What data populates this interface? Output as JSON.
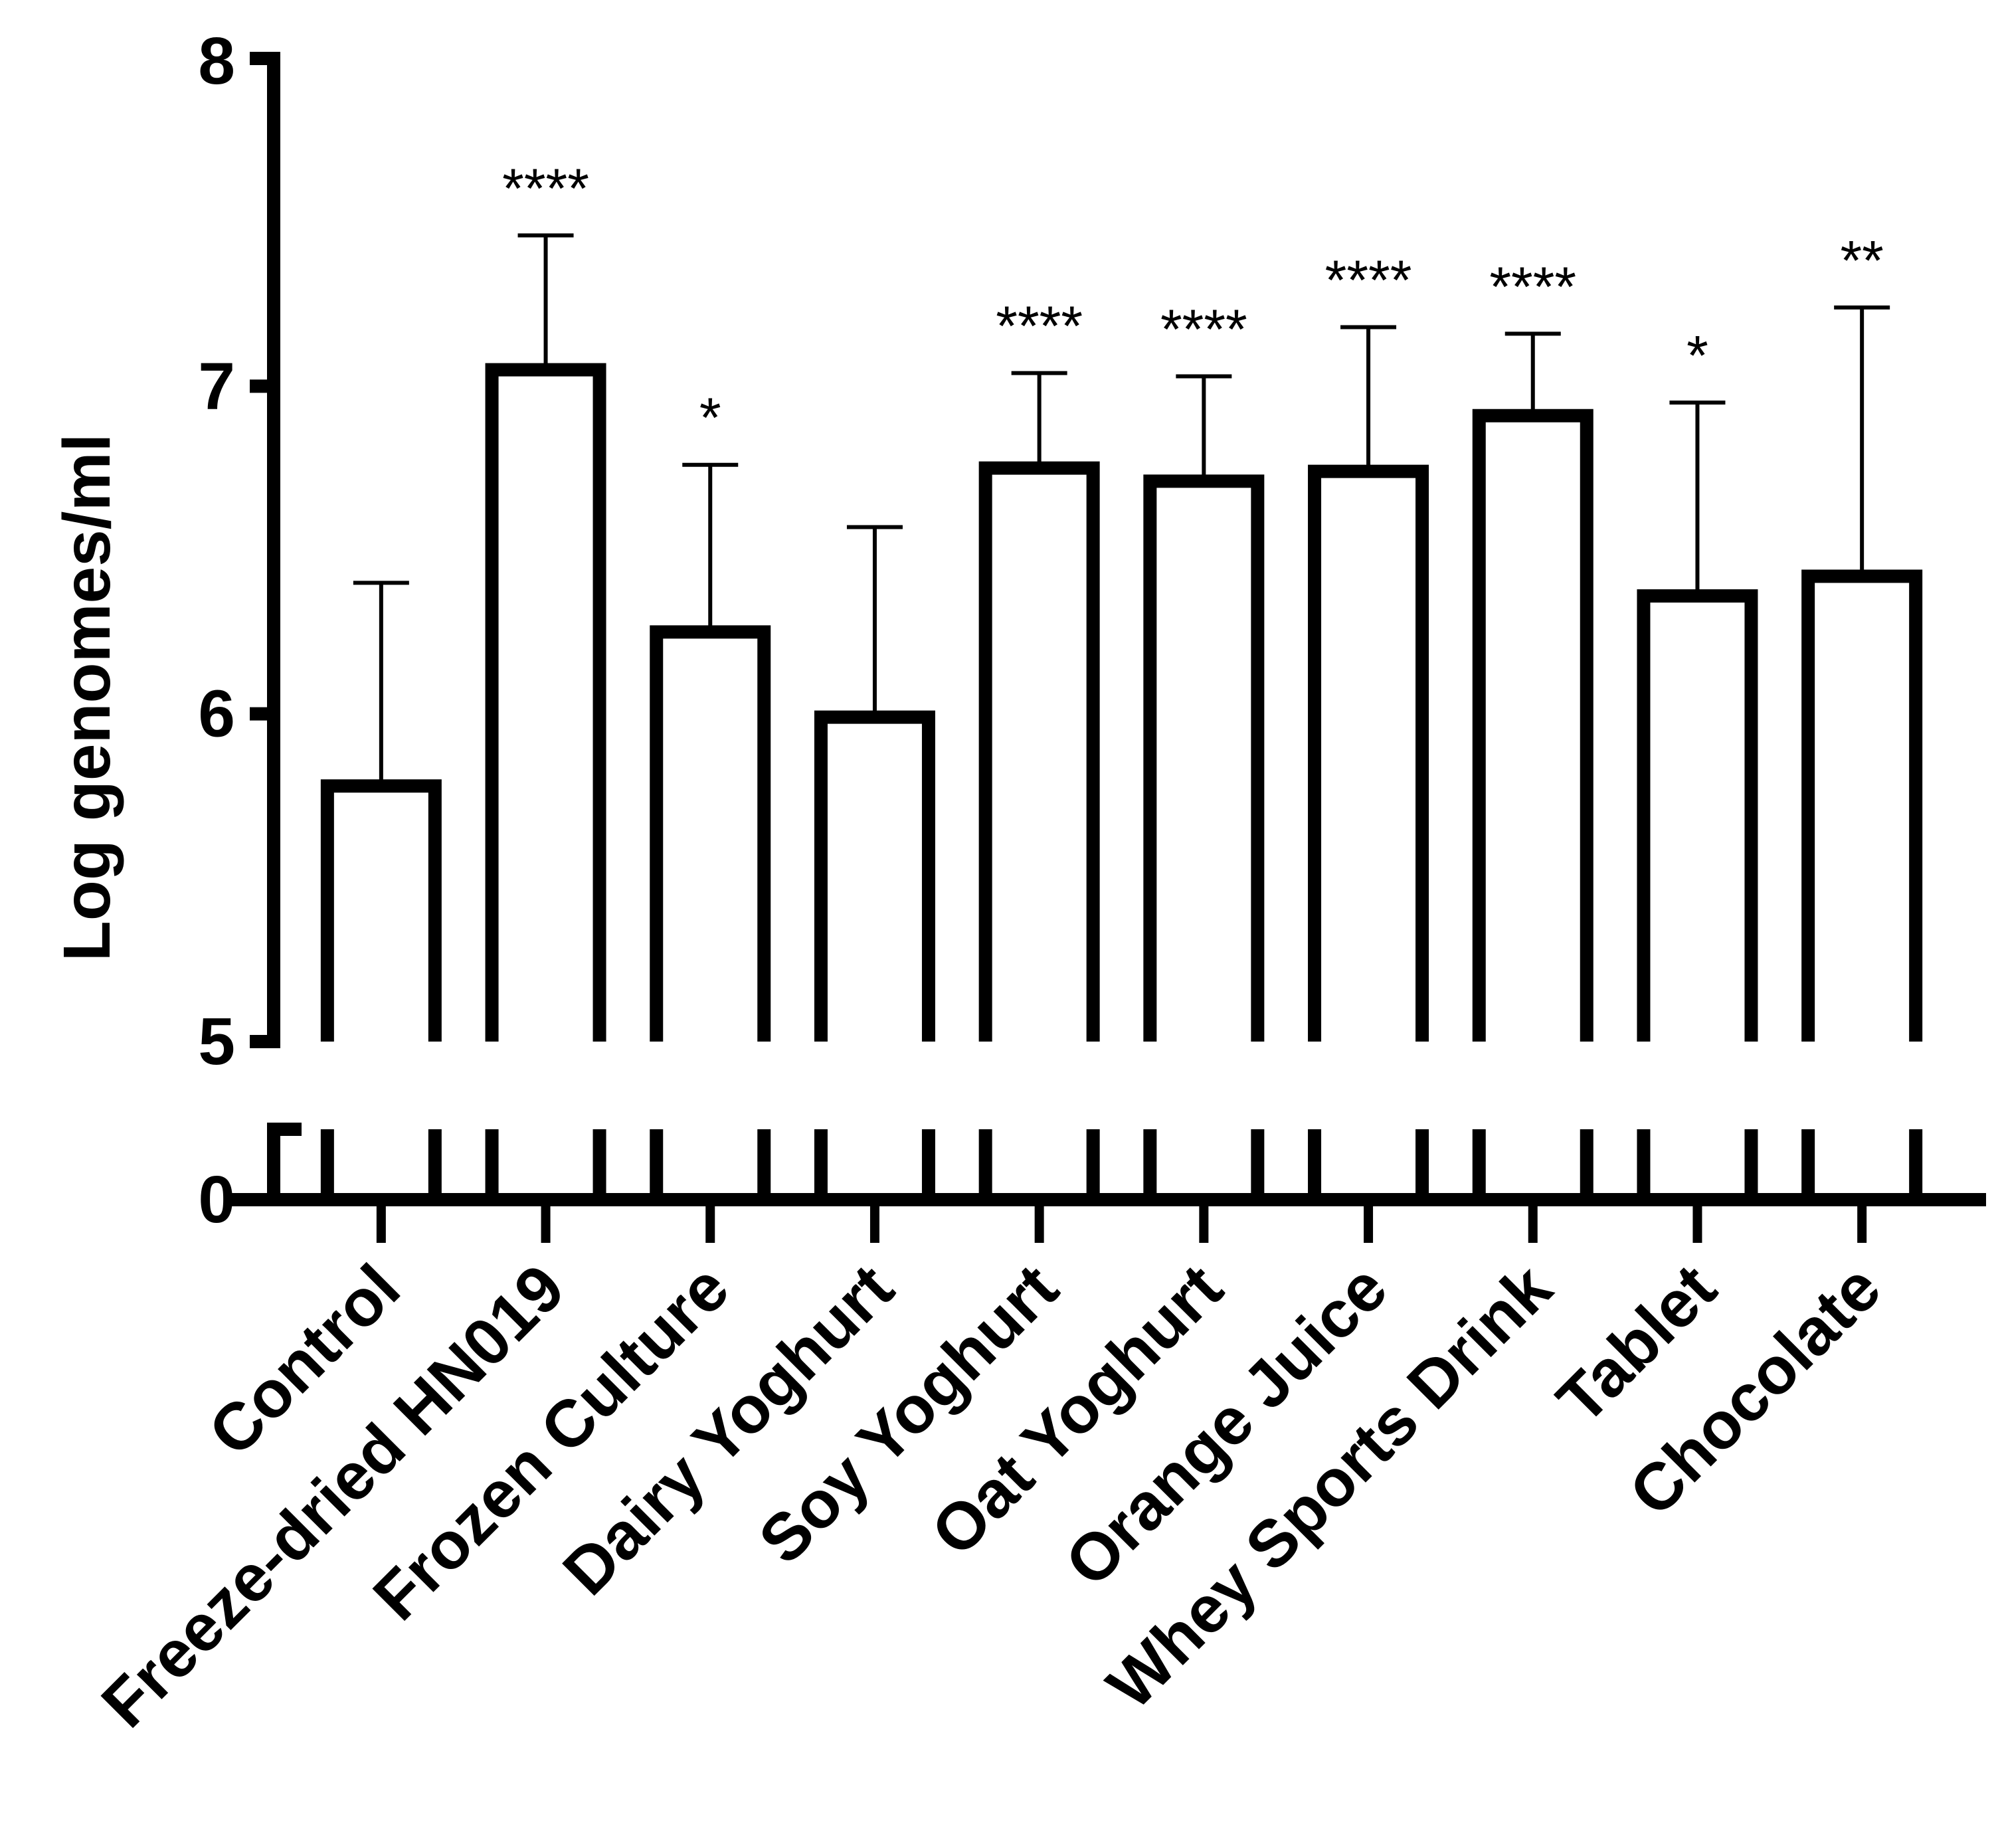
{
  "chart_data": {
    "type": "bar",
    "title": "",
    "xlabel": "",
    "ylabel": "Log genomes/ml",
    "axis_break": {
      "lower_range": [
        0,
        0.5
      ],
      "upper_range": [
        5,
        8
      ]
    },
    "yticks": [
      0,
      5,
      6,
      7,
      8
    ],
    "ytick_labels": [
      "0",
      "5",
      "6",
      "7",
      "8"
    ],
    "categories": [
      "Control",
      "Freeze-dried HN019",
      "Frozen Culture",
      "Dairy Yoghurt",
      "Soy Yoghurt",
      "Oat Yoghurt",
      "Orange Juice",
      "Whey Sports Drink",
      "Tablet",
      "Chocolate"
    ],
    "values": [
      5.78,
      7.05,
      6.25,
      5.99,
      6.75,
      6.71,
      6.74,
      6.91,
      6.36,
      6.42
    ],
    "error_upper": [
      6.4,
      7.46,
      6.76,
      6.57,
      7.04,
      7.03,
      7.18,
      7.16,
      6.95,
      7.24
    ],
    "significance": [
      "",
      "****",
      "*",
      "",
      "****",
      "****",
      "****",
      "****",
      "*",
      "**"
    ],
    "legend": "none",
    "grid": false
  }
}
